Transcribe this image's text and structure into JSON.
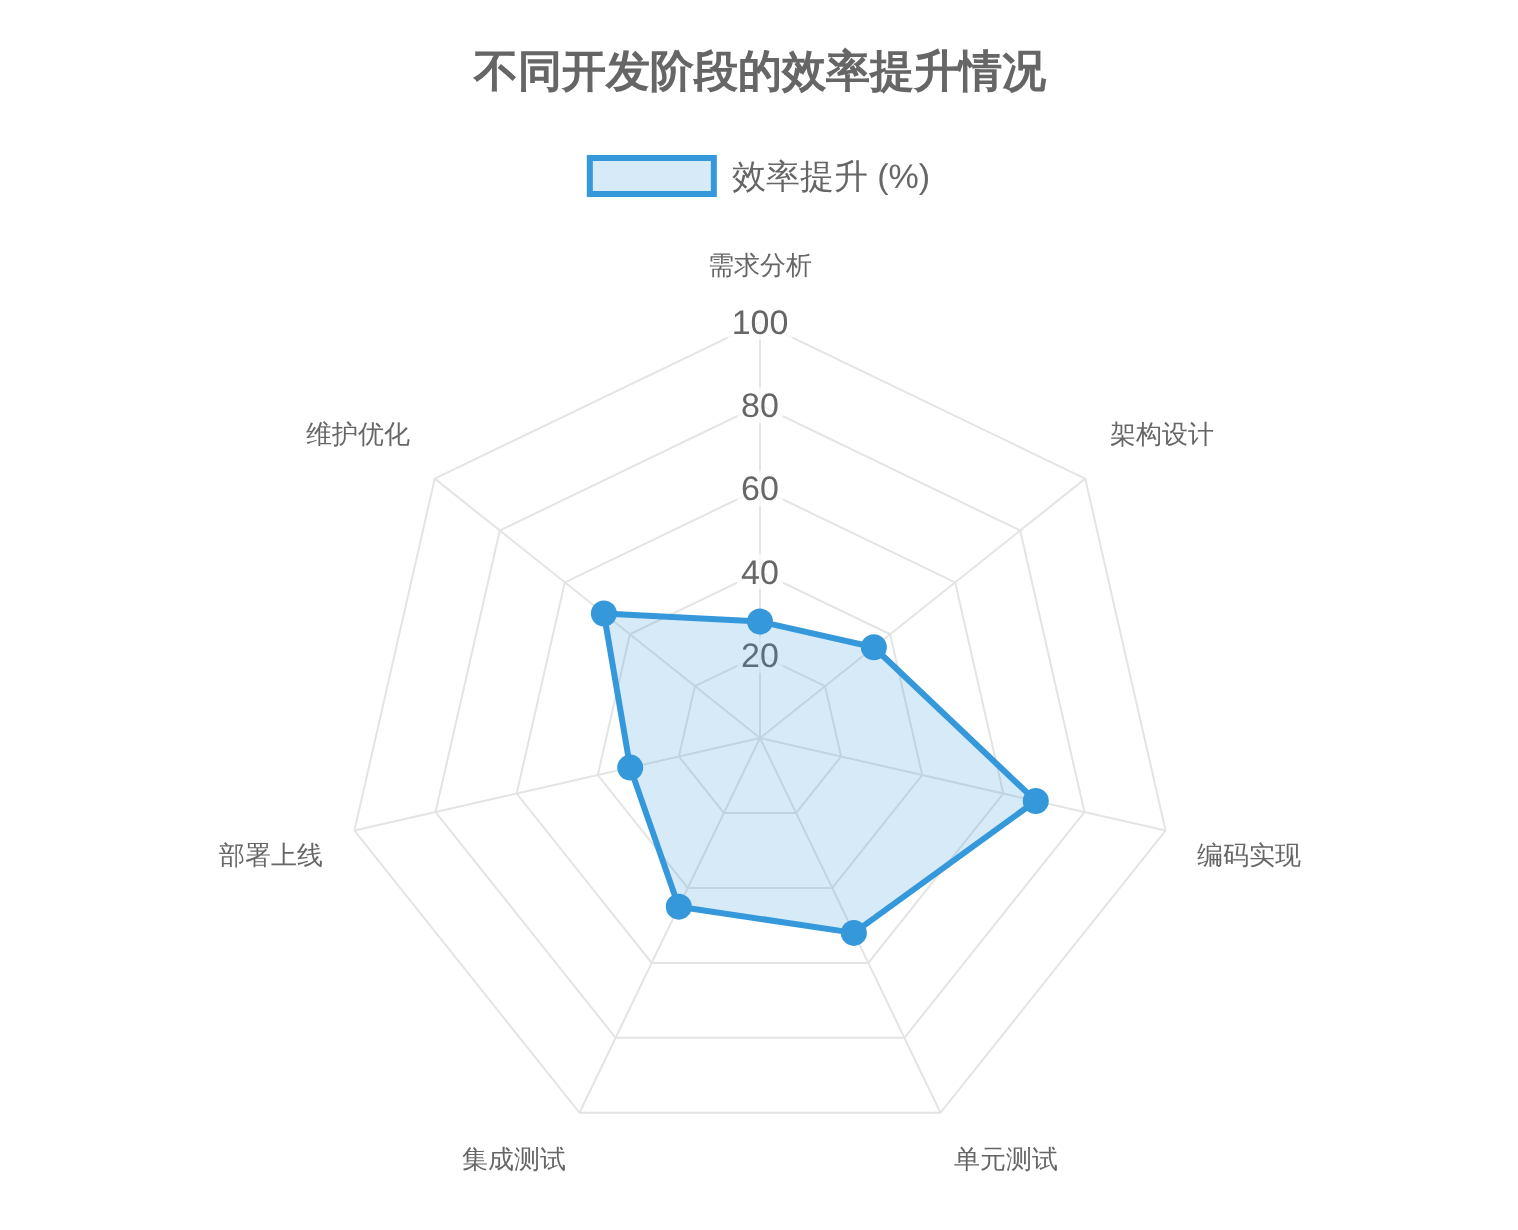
{
  "chart_data": {
    "type": "radar",
    "title": "不同开发阶段的效率提升情况",
    "categories": [
      "需求分析",
      "架构设计",
      "编码实现",
      "单元测试",
      "集成测试",
      "部署上线",
      "维护优化"
    ],
    "series": [
      {
        "name": "效率提升 (%)",
        "color": "#3498db",
        "values": [
          28,
          35,
          68,
          52,
          45,
          32,
          48
        ]
      }
    ],
    "ylim": [
      0,
      100
    ],
    "yticks": [
      20,
      40,
      60,
      80,
      100
    ],
    "grid": true,
    "legend": "top",
    "marker": "circle"
  }
}
